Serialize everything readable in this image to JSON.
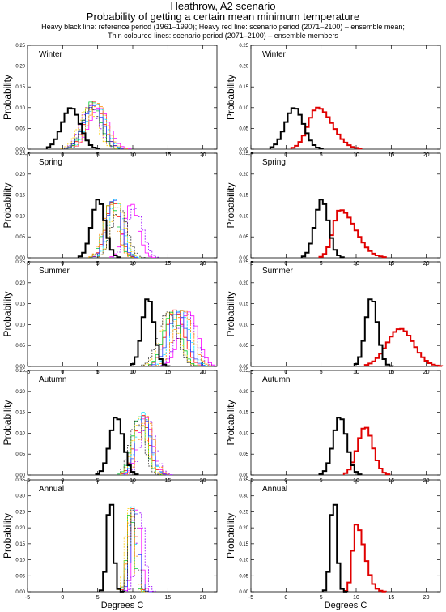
{
  "header": {
    "title_line1": "Heathrow, A2 scenario",
    "title_line2": "Probability of getting a certain mean minimum temperature",
    "subtitle_line1": "Heavy black line: reference period (1961–1990); Heavy red line: scenario period (2071–2100) – ensemble mean;",
    "subtitle_line2": "Thin coloured lines: scenario period (2071–2100) – ensemble members"
  },
  "axis_titles": {
    "y": "Probability",
    "x": "Degrees C"
  },
  "colors": {
    "reference": "#000000",
    "ensemble_mean": "#e00000",
    "members": [
      "#ff0000",
      "#ff00ff",
      "#9a00ff",
      "#00e5ff",
      "#00cc33",
      "#ffcc00",
      "#3344ff",
      "#ff8800",
      "#333333"
    ]
  },
  "chart_data": [
    {
      "type": "line",
      "panel": "left",
      "season_label": "Winter",
      "shape": "step",
      "xlim": [
        -5,
        22
      ],
      "ylim": [
        0,
        0.25
      ],
      "xticks": [
        -5,
        0,
        5,
        10,
        15,
        20
      ],
      "yticks": [
        0.0,
        0.05,
        0.1,
        0.15,
        0.2,
        0.25
      ],
      "reference": {
        "mean": 1.2,
        "sd": 1.3,
        "peak": 0.1
      },
      "members": [
        {
          "mean": 4.5,
          "sd": 1.3,
          "peak": 0.115
        },
        {
          "mean": 5.2,
          "sd": 1.4,
          "peak": 0.1
        },
        {
          "mean": 3.9,
          "sd": 1.3,
          "peak": 0.105
        },
        {
          "mean": 4.8,
          "sd": 1.3,
          "peak": 0.11
        },
        {
          "mean": 4.2,
          "sd": 1.2,
          "peak": 0.115
        },
        {
          "mean": 3.6,
          "sd": 1.3,
          "peak": 0.1
        },
        {
          "mean": 4.4,
          "sd": 1.4,
          "peak": 0.105
        },
        {
          "mean": 5.0,
          "sd": 1.3,
          "peak": 0.11
        },
        {
          "mean": 4.1,
          "sd": 1.3,
          "peak": 0.1
        }
      ]
    },
    {
      "type": "line",
      "panel": "right",
      "season_label": "Winter",
      "shape": "step",
      "xlim": [
        -5,
        22
      ],
      "ylim": [
        0,
        0.25
      ],
      "xticks": [
        -5,
        0,
        5,
        10,
        15,
        20
      ],
      "yticks": [
        0.0,
        0.05,
        0.1,
        0.15,
        0.2,
        0.25
      ],
      "reference": {
        "mean": 1.2,
        "sd": 1.3,
        "peak": 0.1
      },
      "ensemble_mean": {
        "mean": 4.5,
        "sd": 1.6,
        "peak": 0.1,
        "skew": 0.3
      }
    },
    {
      "type": "line",
      "panel": "left",
      "season_label": "Spring",
      "shape": "step",
      "xlim": [
        -5,
        22
      ],
      "ylim": [
        0,
        0.25
      ],
      "xticks": [
        -5,
        0,
        5,
        10,
        15,
        20
      ],
      "yticks": [
        0.0,
        0.05,
        0.1,
        0.15,
        0.2,
        0.25
      ],
      "reference": {
        "mean": 5.1,
        "sd": 0.95,
        "peak": 0.14
      },
      "members": [
        {
          "mean": 7.2,
          "sd": 1.0,
          "peak": 0.135
        },
        {
          "mean": 9.8,
          "sd": 1.0,
          "peak": 0.13
        },
        {
          "mean": 10.3,
          "sd": 1.1,
          "peak": 0.12
        },
        {
          "mean": 7.6,
          "sd": 1.0,
          "peak": 0.14
        },
        {
          "mean": 6.9,
          "sd": 1.0,
          "peak": 0.135
        },
        {
          "mean": 7.9,
          "sd": 1.0,
          "peak": 0.13
        },
        {
          "mean": 7.3,
          "sd": 1.0,
          "peak": 0.14
        },
        {
          "mean": 6.8,
          "sd": 1.0,
          "peak": 0.13
        },
        {
          "mean": 8.1,
          "sd": 1.1,
          "peak": 0.12
        }
      ]
    },
    {
      "type": "line",
      "panel": "right",
      "season_label": "Spring",
      "shape": "step",
      "xlim": [
        -5,
        22
      ],
      "ylim": [
        0,
        0.25
      ],
      "xticks": [
        -5,
        0,
        5,
        10,
        15,
        20
      ],
      "yticks": [
        0.0,
        0.05,
        0.1,
        0.15,
        0.2,
        0.25
      ],
      "reference": {
        "mean": 5.1,
        "sd": 0.95,
        "peak": 0.14
      },
      "ensemble_mean": {
        "mean": 7.7,
        "sd": 1.4,
        "peak": 0.115,
        "skew": 0.55
      }
    },
    {
      "type": "line",
      "panel": "left",
      "season_label": "Summer",
      "shape": "step",
      "xlim": [
        -5,
        22
      ],
      "ylim": [
        0,
        0.25
      ],
      "xticks": [
        -5,
        0,
        5,
        10,
        15,
        20
      ],
      "yticks": [
        0.0,
        0.05,
        0.1,
        0.15,
        0.2,
        0.25
      ],
      "reference": {
        "mean": 12.2,
        "sd": 0.85,
        "peak": 0.165
      },
      "members": [
        {
          "mean": 16.0,
          "sd": 1.3,
          "peak": 0.135
        },
        {
          "mean": 18.0,
          "sd": 1.3,
          "peak": 0.13
        },
        {
          "mean": 17.6,
          "sd": 1.3,
          "peak": 0.13
        },
        {
          "mean": 16.8,
          "sd": 1.3,
          "peak": 0.135
        },
        {
          "mean": 15.6,
          "sd": 1.2,
          "peak": 0.13
        },
        {
          "mean": 15.2,
          "sd": 1.3,
          "peak": 0.13
        },
        {
          "mean": 16.4,
          "sd": 1.3,
          "peak": 0.13
        },
        {
          "mean": 17.2,
          "sd": 1.3,
          "peak": 0.135
        },
        {
          "mean": 15.0,
          "sd": 1.3,
          "peak": 0.13
        }
      ]
    },
    {
      "type": "line",
      "panel": "right",
      "season_label": "Summer",
      "shape": "step",
      "xlim": [
        -5,
        22
      ],
      "ylim": [
        0,
        0.25
      ],
      "xticks": [
        -5,
        0,
        5,
        10,
        15,
        20
      ],
      "yticks": [
        0.0,
        0.05,
        0.1,
        0.15,
        0.2,
        0.25
      ],
      "reference": {
        "mean": 12.2,
        "sd": 0.85,
        "peak": 0.165
      },
      "ensemble_mean": {
        "mean": 16.3,
        "sd": 1.9,
        "peak": 0.09,
        "skew": 0
      }
    },
    {
      "type": "line",
      "panel": "left",
      "season_label": "Autumn",
      "shape": "step",
      "xlim": [
        -5,
        22
      ],
      "ylim": [
        0,
        0.25
      ],
      "xticks": [
        -5,
        0,
        5,
        10,
        15,
        20
      ],
      "yticks": [
        0.0,
        0.05,
        0.1,
        0.15,
        0.2,
        0.25
      ],
      "reference": {
        "mean": 7.7,
        "sd": 0.95,
        "peak": 0.14
      },
      "members": [
        {
          "mean": 11.3,
          "sd": 1.0,
          "peak": 0.145
        },
        {
          "mean": 11.8,
          "sd": 1.0,
          "peak": 0.14
        },
        {
          "mean": 12.2,
          "sd": 1.0,
          "peak": 0.135
        },
        {
          "mean": 11.5,
          "sd": 1.0,
          "peak": 0.15
        },
        {
          "mean": 10.9,
          "sd": 1.0,
          "peak": 0.14
        },
        {
          "mean": 11.0,
          "sd": 1.0,
          "peak": 0.135
        },
        {
          "mean": 11.6,
          "sd": 1.0,
          "peak": 0.14
        },
        {
          "mean": 12.0,
          "sd": 1.0,
          "peak": 0.14
        },
        {
          "mean": 10.6,
          "sd": 1.0,
          "peak": 0.13
        }
      ]
    },
    {
      "type": "line",
      "panel": "right",
      "season_label": "Autumn",
      "shape": "step",
      "xlim": [
        -5,
        22
      ],
      "ylim": [
        0,
        0.25
      ],
      "xticks": [
        -5,
        0,
        5,
        10,
        15,
        20
      ],
      "yticks": [
        0.0,
        0.05,
        0.1,
        0.15,
        0.2,
        0.25
      ],
      "reference": {
        "mean": 7.7,
        "sd": 0.95,
        "peak": 0.14
      },
      "ensemble_mean": {
        "mean": 11.3,
        "sd": 1.1,
        "peak": 0.115,
        "skew": 0
      }
    },
    {
      "type": "line",
      "panel": "left",
      "season_label": "Annual",
      "shape": "step",
      "xlim": [
        -5,
        22
      ],
      "ylim": [
        0,
        0.35
      ],
      "xticks": [
        -5,
        0,
        5,
        10,
        15,
        20
      ],
      "yticks": [
        0.0,
        0.05,
        0.1,
        0.15,
        0.2,
        0.25,
        0.3,
        0.35
      ],
      "reference": {
        "mean": 6.8,
        "sd": 0.45,
        "peak": 0.3
      },
      "members": [
        {
          "mean": 10.0,
          "sd": 0.55,
          "peak": 0.26
        },
        {
          "mean": 10.6,
          "sd": 0.55,
          "peak": 0.26
        },
        {
          "mean": 11.1,
          "sd": 0.6,
          "peak": 0.25
        },
        {
          "mean": 9.9,
          "sd": 0.55,
          "peak": 0.27
        },
        {
          "mean": 9.7,
          "sd": 0.5,
          "peak": 0.26
        },
        {
          "mean": 9.5,
          "sd": 0.55,
          "peak": 0.26
        },
        {
          "mean": 10.3,
          "sd": 0.55,
          "peak": 0.26
        },
        {
          "mean": 9.8,
          "sd": 0.55,
          "peak": 0.25
        },
        {
          "mean": 10.1,
          "sd": 0.55,
          "peak": 0.26
        }
      ]
    },
    {
      "type": "line",
      "panel": "right",
      "season_label": "Annual",
      "shape": "step",
      "xlim": [
        -5,
        22
      ],
      "ylim": [
        0,
        0.35
      ],
      "xticks": [
        -5,
        0,
        5,
        10,
        15,
        20
      ],
      "yticks": [
        0.0,
        0.05,
        0.1,
        0.15,
        0.2,
        0.25,
        0.3,
        0.35
      ],
      "reference": {
        "mean": 6.8,
        "sd": 0.45,
        "peak": 0.3
      },
      "ensemble_mean": {
        "mean": 10.0,
        "sd": 0.75,
        "peak": 0.21,
        "skew": 0.6
      }
    }
  ]
}
